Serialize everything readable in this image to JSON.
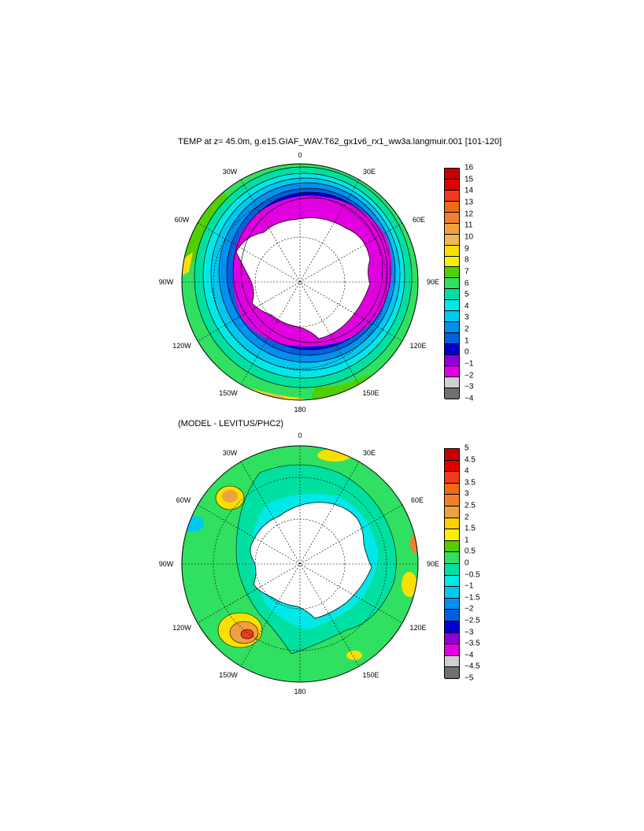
{
  "panel1": {
    "title": "TEMP at z=  45.0m, g.e15.GIAF_WAV.T62_gx1v6_rx1_ww3a.langmuir.001 [101-120]",
    "lon_labels": [
      "0",
      "30E",
      "60E",
      "90E",
      "120E",
      "150E",
      "180",
      "150W",
      "120W",
      "90W",
      "60W",
      "30W"
    ],
    "colorbar": {
      "labels": [
        "16",
        "15",
        "14",
        "13",
        "12",
        "11",
        "10",
        "9",
        "8",
        "7",
        "6",
        "5",
        "4",
        "3",
        "2",
        "1",
        "0",
        "−1",
        "−2",
        "−3",
        "−4"
      ],
      "colors": [
        "#c80000",
        "#e00000",
        "#f03a20",
        "#f06a10",
        "#f08030",
        "#f0a040",
        "#f0b850",
        "#f8e000",
        "#f8f000",
        "#50d000",
        "#30e060",
        "#00e0a0",
        "#00e8e8",
        "#00c8f0",
        "#0090f0",
        "#0060e0",
        "#0000d0",
        "#9000d8",
        "#e000e0",
        "#cfcfcf",
        "#707070"
      ]
    }
  },
  "panel2": {
    "title": "(MODEL - LEVITUS/PHC2)",
    "lon_labels": [
      "0",
      "30E",
      "60E",
      "90E",
      "120E",
      "150E",
      "180",
      "150W",
      "120W",
      "90W",
      "60W",
      "30W"
    ],
    "colorbar": {
      "labels": [
        "5",
        "4.5",
        "4",
        "3.5",
        "3",
        "2.5",
        "2",
        "1.5",
        "1",
        "0.5",
        "0",
        "−0.5",
        "−1",
        "−1.5",
        "−2",
        "−2.5",
        "−3",
        "−3.5",
        "−4",
        "−4.5",
        "−5"
      ],
      "colors": [
        "#c80000",
        "#e00000",
        "#f03a20",
        "#f06a10",
        "#f08030",
        "#f0a040",
        "#f8d000",
        "#f8f000",
        "#50d000",
        "#30e060",
        "#00e0a0",
        "#00e8e8",
        "#00c8f0",
        "#0090f0",
        "#0060e0",
        "#0000d0",
        "#9000d8",
        "#e000e0",
        "#cfcfcf",
        "#707070"
      ]
    }
  }
}
